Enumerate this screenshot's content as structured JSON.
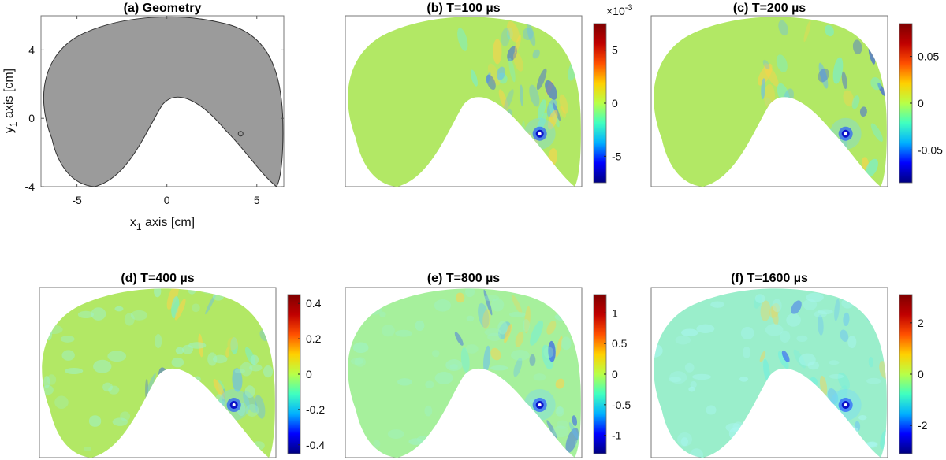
{
  "figure": {
    "colormap": [
      "#00007f",
      "#0000ff",
      "#00b0ff",
      "#40ffc0",
      "#b8ff48",
      "#ffd000",
      "#ff5000",
      "#c00000",
      "#7f0000"
    ],
    "colors": {
      "geometry_fill": "#9b9b9b",
      "field_base": "#b2e865",
      "source_dot": "#1a1aff"
    }
  },
  "chart_data": [
    {
      "id": "a",
      "type": "geometry",
      "title": "(a) Geometry",
      "xlabel": "x",
      "xlabel_sub": "1",
      "xlabel_suffix": " axis [cm]",
      "ylabel": "y",
      "ylabel_sub": "1",
      "ylabel_suffix": " axis [cm]",
      "xlim": [
        -7,
        6.5
      ],
      "ylim": [
        -4,
        6
      ],
      "xticks": [
        -5,
        0,
        5
      ],
      "xtick_labels": [
        "-5",
        "0",
        "5"
      ],
      "yticks": [
        -4,
        0,
        4
      ],
      "ytick_labels": [
        "-4",
        "0",
        "4"
      ],
      "source": {
        "x": 4.1,
        "y": -0.9
      }
    },
    {
      "id": "b",
      "type": "heatmap",
      "title": "(b) T=100 µs",
      "colorbar": {
        "range": [
          -0.0075,
          0.0075
        ],
        "ticks": [
          -0.005,
          0,
          0.005
        ],
        "tick_labels": [
          "-5",
          "0",
          "5"
        ],
        "exponent": "×10",
        "exponent_power": "-3"
      },
      "source": {
        "x": 4.1,
        "y": -0.9
      }
    },
    {
      "id": "c",
      "type": "heatmap",
      "title": "(c) T=200 µs",
      "colorbar": {
        "range": [
          -0.085,
          0.085
        ],
        "ticks": [
          -0.05,
          0,
          0.05
        ],
        "tick_labels": [
          "-0.05",
          "0",
          "0.05"
        ]
      },
      "source": {
        "x": 4.1,
        "y": -0.9
      }
    },
    {
      "id": "d",
      "type": "heatmap",
      "title": "(d) T=400 µs",
      "colorbar": {
        "range": [
          -0.45,
          0.45
        ],
        "ticks": [
          -0.4,
          -0.2,
          0,
          0.2,
          0.4
        ],
        "tick_labels": [
          "-0.4",
          "-0.2",
          "0",
          "0.2",
          "0.4"
        ]
      },
      "source": {
        "x": 4.1,
        "y": -0.9
      }
    },
    {
      "id": "e",
      "type": "heatmap",
      "title": "(e) T=800 µs",
      "colorbar": {
        "range": [
          -1.3,
          1.3
        ],
        "ticks": [
          -1,
          -0.5,
          0,
          0.5,
          1
        ],
        "tick_labels": [
          "-1",
          "-0.5",
          "0",
          "0.5",
          "1"
        ]
      },
      "source": {
        "x": 4.1,
        "y": -0.9
      }
    },
    {
      "id": "f",
      "type": "heatmap",
      "title": "(f) T=1600 µs",
      "colorbar": {
        "range": [
          -3.1,
          3.1
        ],
        "ticks": [
          -2,
          0,
          2
        ],
        "tick_labels": [
          "-2",
          "0",
          "2"
        ]
      },
      "source": {
        "x": 4.1,
        "y": -0.9
      }
    }
  ]
}
